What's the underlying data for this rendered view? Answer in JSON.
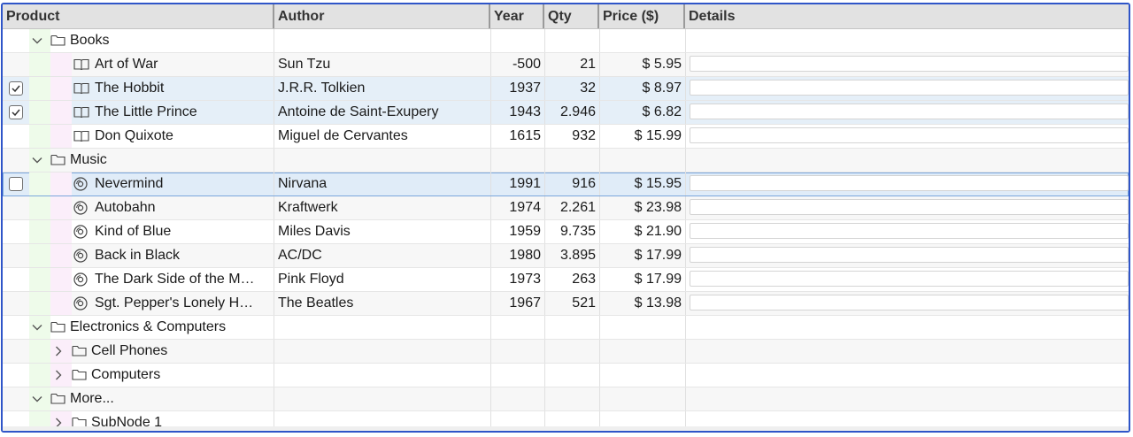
{
  "columns": {
    "product": "Product",
    "author": "Author",
    "year": "Year",
    "qty": "Qty",
    "price": "Price ($)",
    "details": "Details"
  },
  "rows": [
    {
      "type": "folder",
      "level": 1,
      "expanded": true,
      "title": "Books"
    },
    {
      "type": "book",
      "level": 2,
      "title": "Art of War",
      "author": "Sun Tzu",
      "year": "-500",
      "qty": "21",
      "price": "$ 5.95",
      "checkbox": "none"
    },
    {
      "type": "book",
      "level": 2,
      "title": "The Hobbit",
      "author": "J.R.R. Tolkien",
      "year": "1937",
      "qty": "32",
      "price": "$ 8.97",
      "checkbox": "checked",
      "selected": true
    },
    {
      "type": "book",
      "level": 2,
      "title": "The Little Prince",
      "author": "Antoine de Saint-Exupery",
      "year": "1943",
      "qty": "2.946",
      "price": "$ 6.82",
      "checkbox": "checked",
      "selected": true
    },
    {
      "type": "book",
      "level": 2,
      "title": "Don Quixote",
      "author": "Miguel de Cervantes",
      "year": "1615",
      "qty": "932",
      "price": "$ 15.99",
      "checkbox": "none"
    },
    {
      "type": "folder",
      "level": 1,
      "expanded": true,
      "title": "Music"
    },
    {
      "type": "music",
      "level": 2,
      "title": "Nevermind",
      "author": "Nirvana",
      "year": "1991",
      "qty": "916",
      "price": "$ 15.95",
      "checkbox": "unchecked",
      "active": true
    },
    {
      "type": "music",
      "level": 2,
      "title": "Autobahn",
      "author": "Kraftwerk",
      "year": "1974",
      "qty": "2.261",
      "price": "$ 23.98",
      "checkbox": "none"
    },
    {
      "type": "music",
      "level": 2,
      "title": "Kind of Blue",
      "author": "Miles Davis",
      "year": "1959",
      "qty": "9.735",
      "price": "$ 21.90",
      "checkbox": "none"
    },
    {
      "type": "music",
      "level": 2,
      "title": "Back in Black",
      "author": "AC/DC",
      "year": "1980",
      "qty": "3.895",
      "price": "$ 17.99",
      "checkbox": "none"
    },
    {
      "type": "music",
      "level": 2,
      "title": "The Dark Side of the M…",
      "author": "Pink Floyd",
      "year": "1973",
      "qty": "263",
      "price": "$ 17.99",
      "checkbox": "none"
    },
    {
      "type": "music",
      "level": 2,
      "title": "Sgt. Pepper's Lonely H…",
      "author": "The Beatles",
      "year": "1967",
      "qty": "521",
      "price": "$ 13.98",
      "checkbox": "none"
    },
    {
      "type": "folder",
      "level": 1,
      "expanded": true,
      "title": "Electronics & Computers"
    },
    {
      "type": "folder",
      "level": 2,
      "expanded": false,
      "title": "Cell Phones"
    },
    {
      "type": "folder",
      "level": 2,
      "expanded": false,
      "title": "Computers"
    },
    {
      "type": "folder",
      "level": 1,
      "expanded": true,
      "title": "More..."
    },
    {
      "type": "folder",
      "level": 2,
      "expanded": false,
      "title": "SubNode 1"
    }
  ],
  "icons": {
    "folder": "folder-icon",
    "book": "book-icon",
    "music": "disc-icon",
    "expanded": "chevron-down-icon",
    "collapsed": "chevron-right-icon",
    "checked": "checkmark-icon"
  },
  "colors": {
    "frame_border": "#2f55c8",
    "header_bg": "#e2e2e2",
    "selected_row": "#e5eff8",
    "level1_band": "#eefbea",
    "level2_band": "#fbeefa"
  }
}
